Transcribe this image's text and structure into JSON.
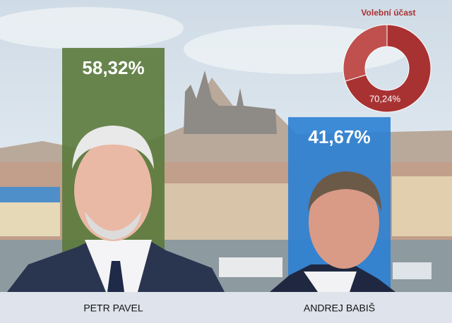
{
  "chart_data": [
    {
      "type": "bar",
      "categories": [
        "PETR PAVEL",
        "ANDREJ BABIŠ"
      ],
      "values": [
        58.32,
        41.67
      ],
      "value_labels": [
        "58,32%",
        "41,67%"
      ],
      "colors": [
        "#5b7a3c",
        "#2b7fd4"
      ]
    },
    {
      "type": "pie",
      "title": "Volební účast",
      "values": [
        70.24
      ],
      "value_labels": [
        "70,24%"
      ],
      "color": "#a83232"
    }
  ]
}
